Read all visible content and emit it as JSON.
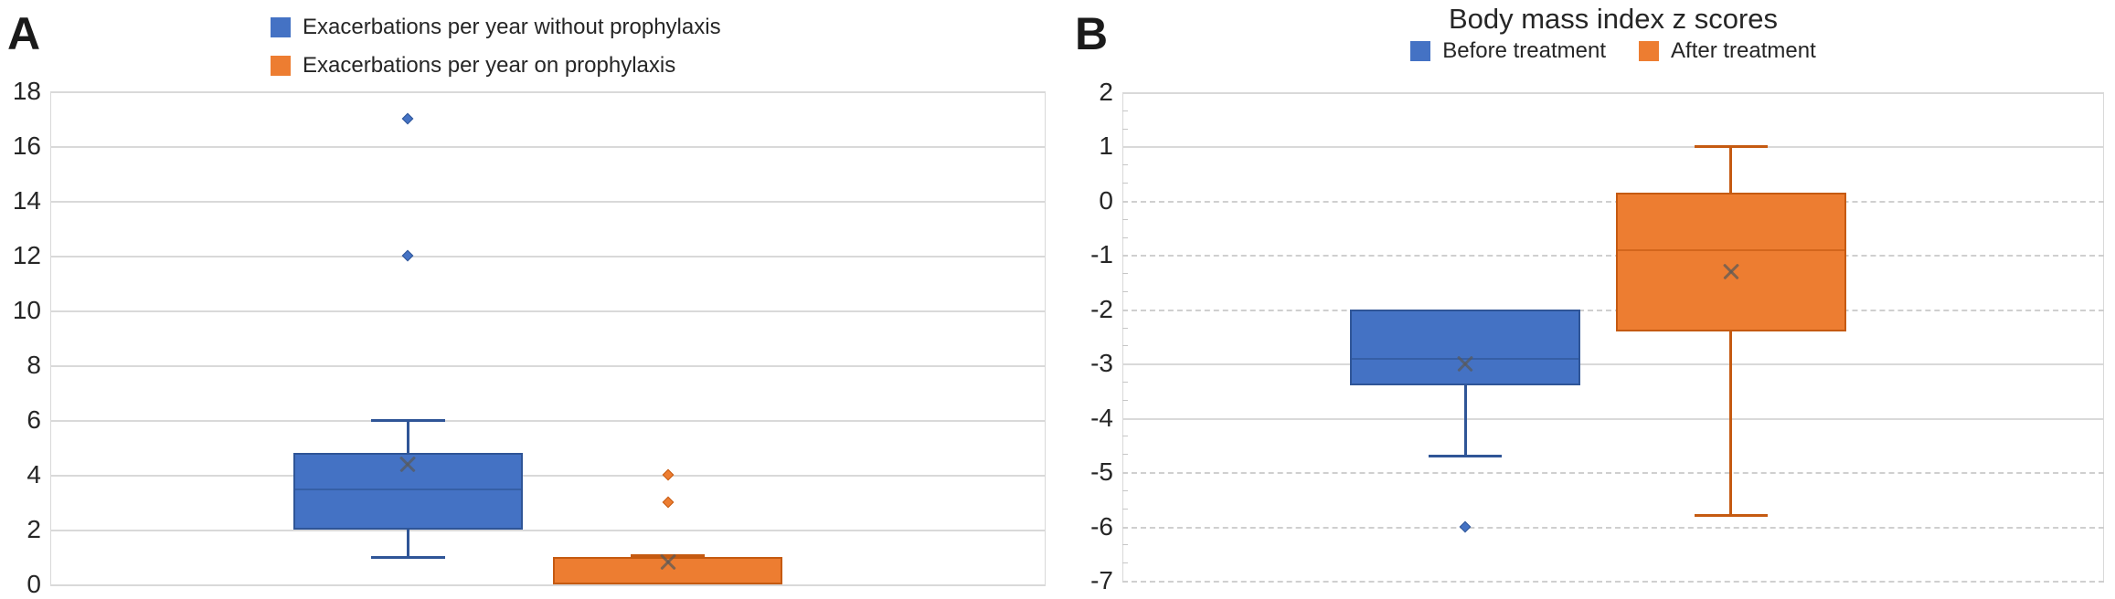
{
  "colors": {
    "blue_fill": "#4472C4",
    "blue_border": "#2F5597",
    "orange_fill": "#ED7D31",
    "orange_border": "#C55A11",
    "gridline": "#D9D9D9",
    "text": "#262626",
    "mean_marker": "#595959"
  },
  "chart_data": [
    {
      "type": "box",
      "panel_label": "A",
      "title": "",
      "legend_position": "top-left-stacked",
      "grid": "on",
      "ylim": [
        0,
        18
      ],
      "yticks": [
        18,
        16,
        14,
        12,
        10,
        8,
        6,
        4,
        2,
        0
      ],
      "ytick_line_styles": [
        "solid",
        "solid",
        "solid",
        "solid",
        "solid",
        "solid",
        "solid",
        "solid",
        "solid",
        "solid"
      ],
      "series": [
        {
          "name": "Exacerbations per year without prophylaxis",
          "color_key": "blue",
          "whisker_low": 1,
          "q1": 2,
          "median": 3.5,
          "q3": 4.8,
          "whisker_high": 6,
          "mean": 4.4,
          "outliers": [
            12,
            17
          ]
        },
        {
          "name": "Exacerbations per year on prophylaxis",
          "color_key": "orange",
          "whisker_low": 0,
          "q1": 0,
          "median": 1,
          "q3": 1,
          "whisker_high": 1.05,
          "mean": 0.85,
          "outliers": [
            3,
            4
          ]
        }
      ]
    },
    {
      "type": "box",
      "panel_label": "B",
      "title": "Body mass index z scores",
      "legend_position": "top-center-row",
      "grid": "on",
      "ylim": [
        -7,
        2
      ],
      "yticks": [
        2,
        1,
        0,
        -1,
        -2,
        -3,
        -4,
        -5,
        -6,
        -7
      ],
      "ytick_line_styles": [
        "solid",
        "solid",
        "dashed",
        "dashed",
        "dashed",
        "solid",
        "solid",
        "dashed",
        "dashed",
        "dashed"
      ],
      "series": [
        {
          "name": "Before treatment",
          "color_key": "blue",
          "whisker_low": -4.7,
          "q1": -3.4,
          "median": -2.9,
          "q3": -2,
          "whisker_high": -2,
          "mean": -3.0,
          "outliers": [
            -6
          ]
        },
        {
          "name": "After treatment",
          "color_key": "orange",
          "whisker_low": -5.8,
          "q1": -2.4,
          "median": -0.9,
          "q3": 0.15,
          "whisker_high": 1,
          "mean": -1.3,
          "outliers": []
        }
      ]
    }
  ]
}
